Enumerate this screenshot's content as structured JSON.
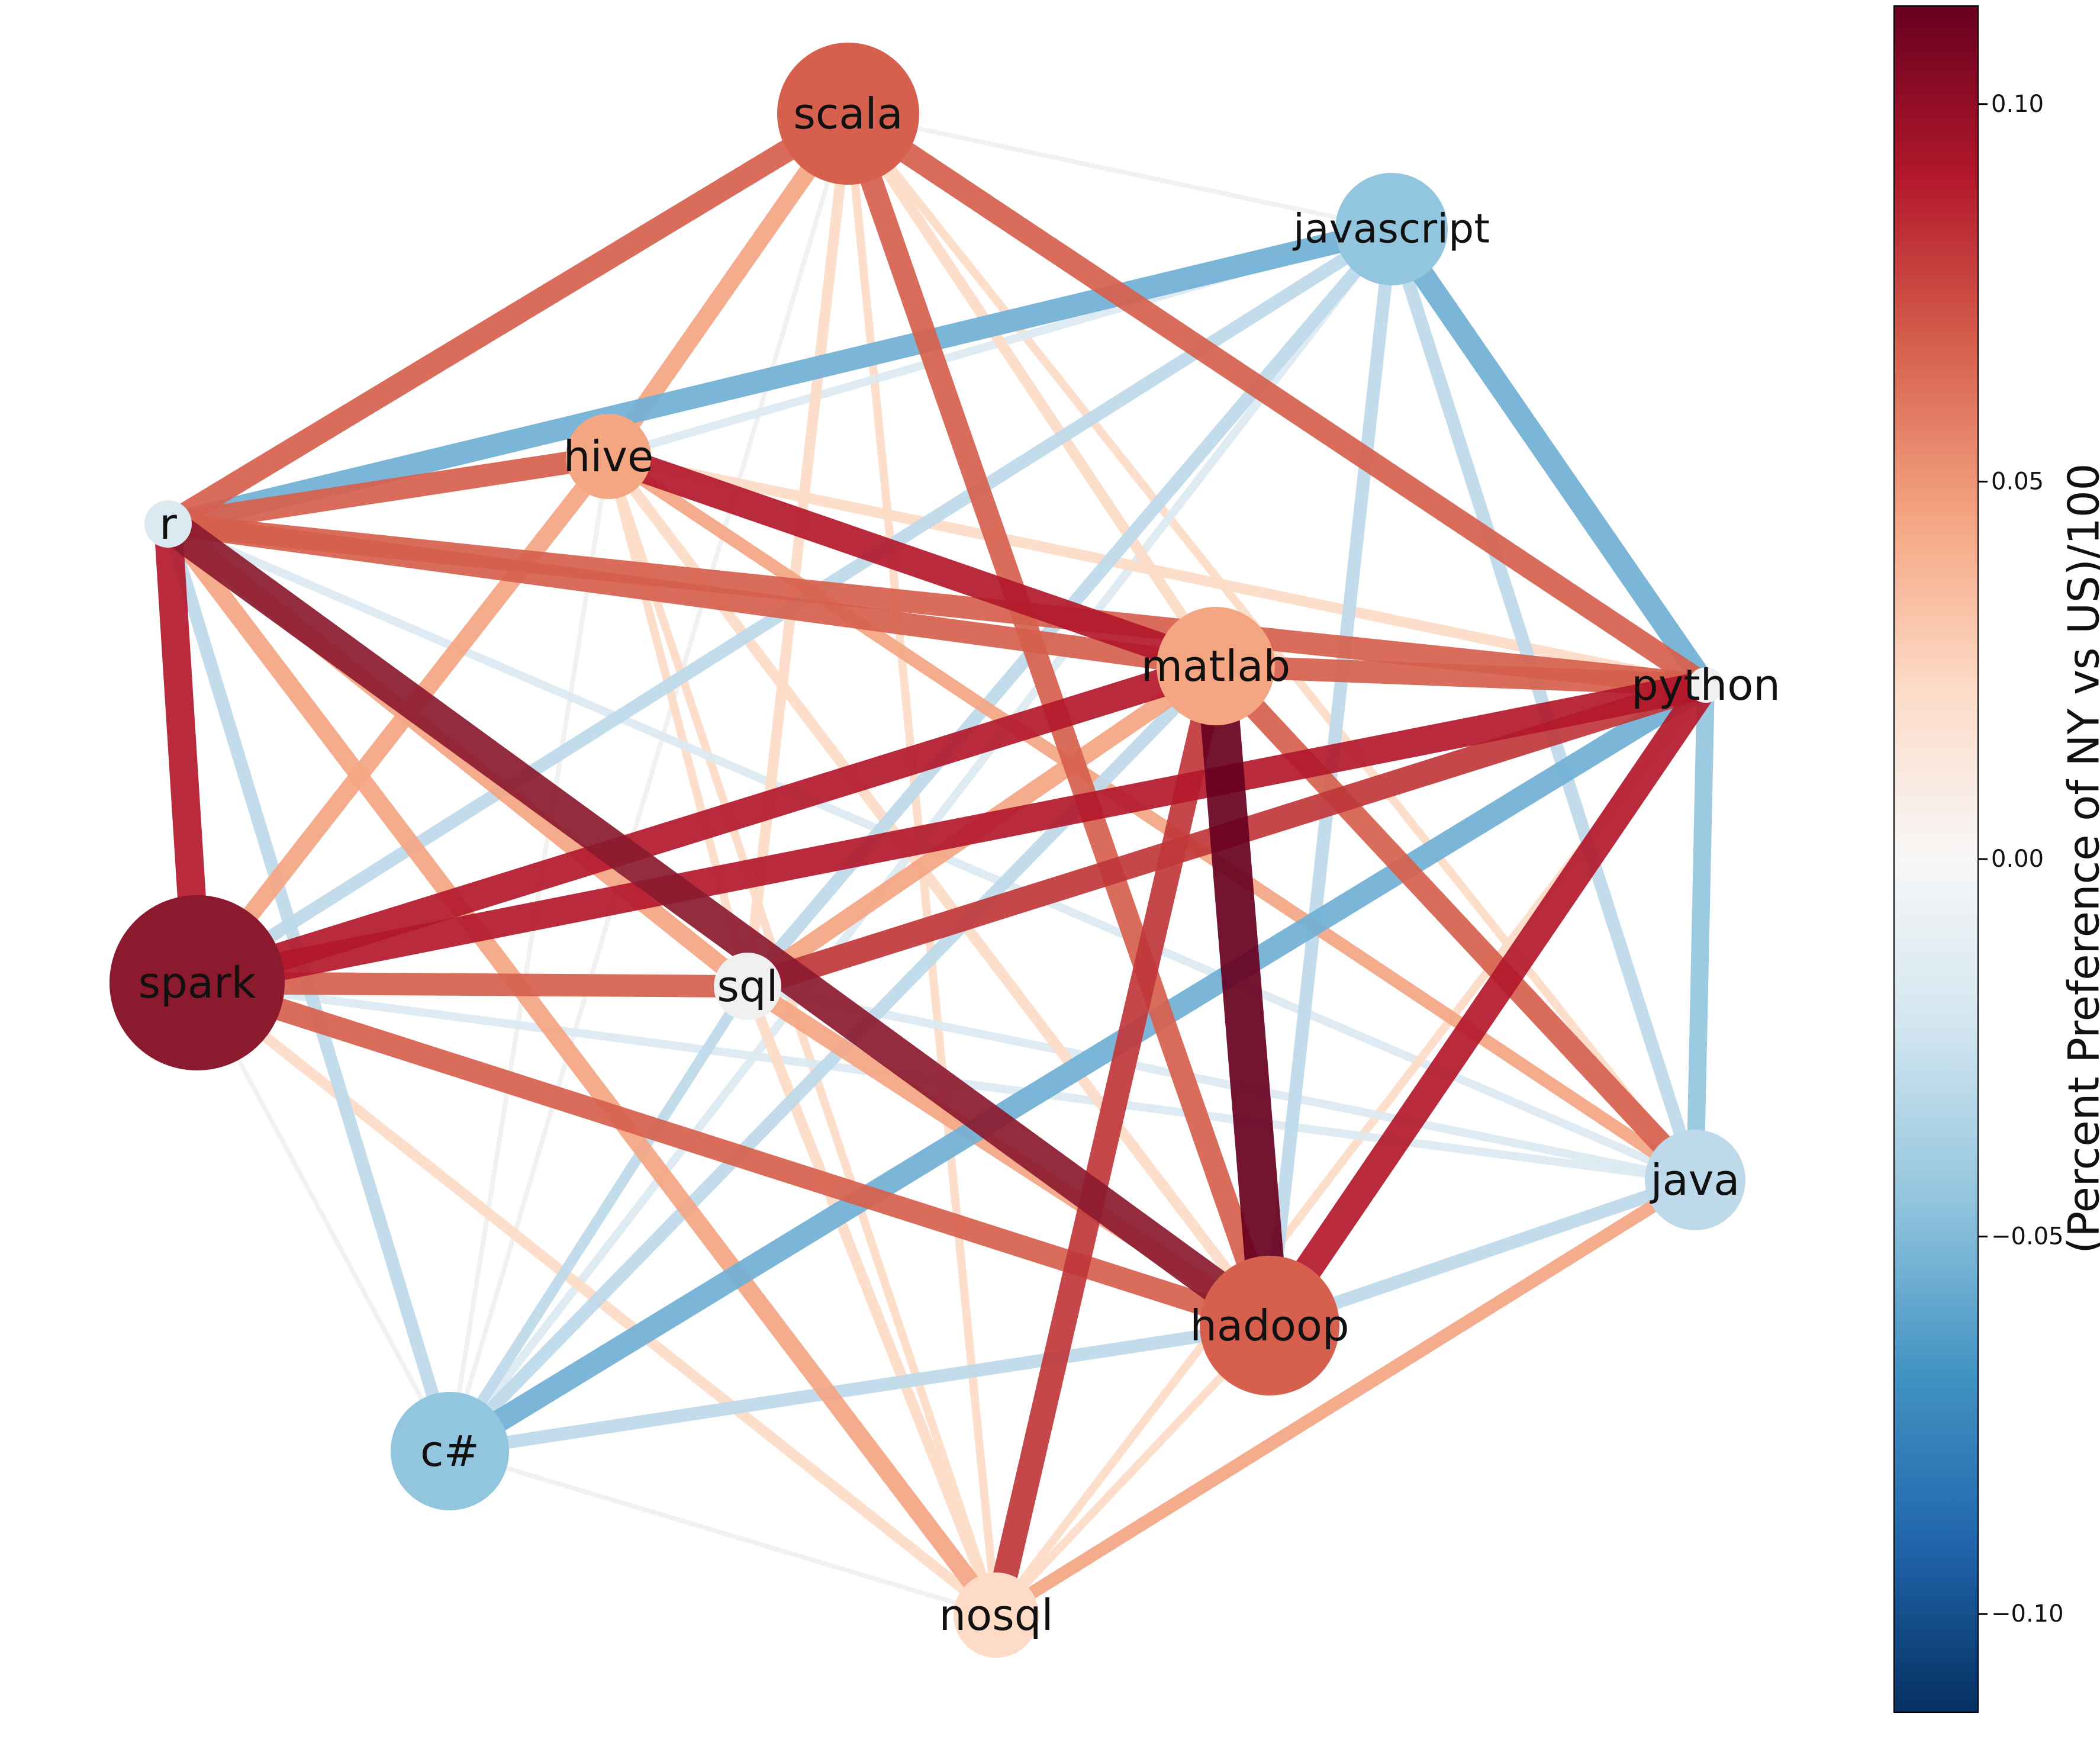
{
  "colors": {
    "c_pos_11": "#67001f",
    "c_pos_10": "#8b1a2f",
    "c_pos_08": "#b2182b",
    "c_pos_07": "#c0373a",
    "c_pos_06": "#d6604d",
    "c_pos_04": "#f4a582",
    "c_pos_02": "#fddbc7",
    "c_zero": "#f0f0f0",
    "c_neg_02": "#dbe9f1",
    "c_neg_04": "#bdd9ea",
    "c_neg_05": "#92c5de",
    "c_neg_06": "#70b0d6",
    "node_label": "#111111",
    "colorbar_stops": [
      "#053061",
      "#2166ac",
      "#4393c3",
      "#92c5de",
      "#d1e5f0",
      "#f7f7f7",
      "#fddbc7",
      "#f4a582",
      "#d6604d",
      "#b2182b",
      "#67001f"
    ]
  },
  "nodes": [
    {
      "id": "scala",
      "label": "scala",
      "value": 0.07
    },
    {
      "id": "javascript",
      "label": "javascript",
      "value": -0.05
    },
    {
      "id": "hive",
      "label": "hive",
      "value": 0.035
    },
    {
      "id": "r",
      "label": "r",
      "value": -0.015
    },
    {
      "id": "matlab",
      "label": "matlab",
      "value": 0.05
    },
    {
      "id": "python",
      "label": "python",
      "value": 0.0
    },
    {
      "id": "spark",
      "label": "spark",
      "value": 0.1
    },
    {
      "id": "sql",
      "label": "sql",
      "value": -0.01
    },
    {
      "id": "java",
      "label": "java",
      "value": -0.03
    },
    {
      "id": "hadoop",
      "label": "hadoop",
      "value": 0.07
    },
    {
      "id": "c#",
      "label": "c#",
      "value": -0.05
    },
    {
      "id": "nosql",
      "label": "nosql",
      "value": 0.03
    }
  ],
  "edges": [
    {
      "source": "scala",
      "target": "javascript",
      "value": -0.01
    },
    {
      "source": "scala",
      "target": "r",
      "value": 0.07
    },
    {
      "source": "scala",
      "target": "hive",
      "value": 0.05
    },
    {
      "source": "scala",
      "target": "python",
      "value": 0.07
    },
    {
      "source": "scala",
      "target": "sql",
      "value": 0.03
    },
    {
      "source": "scala",
      "target": "matlab",
      "value": 0.03
    },
    {
      "source": "scala",
      "target": "hadoop",
      "value": 0.07
    },
    {
      "source": "scala",
      "target": "nosql",
      "value": 0.02
    },
    {
      "source": "scala",
      "target": "java",
      "value": 0.02
    },
    {
      "source": "scala",
      "target": "c#",
      "value": -0.01
    },
    {
      "source": "javascript",
      "target": "r",
      "value": -0.06
    },
    {
      "source": "javascript",
      "target": "hive",
      "value": -0.02
    },
    {
      "source": "javascript",
      "target": "python",
      "value": -0.06
    },
    {
      "source": "javascript",
      "target": "spark",
      "value": -0.04
    },
    {
      "source": "javascript",
      "target": "sql",
      "value": -0.04
    },
    {
      "source": "javascript",
      "target": "java",
      "value": -0.04
    },
    {
      "source": "javascript",
      "target": "hadoop",
      "value": -0.04
    },
    {
      "source": "javascript",
      "target": "c#",
      "value": -0.02
    },
    {
      "source": "hive",
      "target": "r",
      "value": 0.07
    },
    {
      "source": "hive",
      "target": "matlab",
      "value": 0.09
    },
    {
      "source": "hive",
      "target": "python",
      "value": 0.03
    },
    {
      "source": "hive",
      "target": "spark",
      "value": 0.05
    },
    {
      "source": "hive",
      "target": "sql",
      "value": 0.02
    },
    {
      "source": "hive",
      "target": "java",
      "value": 0.04
    },
    {
      "source": "hive",
      "target": "hadoop",
      "value": 0.03
    },
    {
      "source": "hive",
      "target": "nosql",
      "value": 0.02
    },
    {
      "source": "hive",
      "target": "c#",
      "value": -0.01
    },
    {
      "source": "r",
      "target": "matlab",
      "value": 0.07
    },
    {
      "source": "r",
      "target": "python",
      "value": 0.07
    },
    {
      "source": "r",
      "target": "spark",
      "value": 0.09
    },
    {
      "source": "r",
      "target": "hadoop",
      "value": 0.1
    },
    {
      "source": "r",
      "target": "java",
      "value": -0.02
    },
    {
      "source": "r",
      "target": "c#",
      "value": -0.04
    },
    {
      "source": "r",
      "target": "sql",
      "value": 0.05
    },
    {
      "source": "r",
      "target": "nosql",
      "value": 0.05
    },
    {
      "source": "matlab",
      "target": "python",
      "value": 0.07
    },
    {
      "source": "matlab",
      "target": "spark",
      "value": 0.09
    },
    {
      "source": "matlab",
      "target": "sql",
      "value": 0.05
    },
    {
      "source": "matlab",
      "target": "hadoop",
      "value": 0.11
    },
    {
      "source": "matlab",
      "target": "nosql",
      "value": 0.08
    },
    {
      "source": "matlab",
      "target": "java",
      "value": 0.07
    },
    {
      "source": "matlab",
      "target": "c#",
      "value": -0.04
    },
    {
      "source": "python",
      "target": "spark",
      "value": 0.09
    },
    {
      "source": "python",
      "target": "sql",
      "value": 0.08
    },
    {
      "source": "python",
      "target": "java",
      "value": -0.05
    },
    {
      "source": "python",
      "target": "hadoop",
      "value": 0.09
    },
    {
      "source": "python",
      "target": "nosql",
      "value": 0.02
    },
    {
      "source": "python",
      "target": "c#",
      "value": -0.06
    },
    {
      "source": "spark",
      "target": "sql",
      "value": 0.07
    },
    {
      "source": "spark",
      "target": "hadoop",
      "value": 0.07
    },
    {
      "source": "spark",
      "target": "nosql",
      "value": 0.03
    },
    {
      "source": "spark",
      "target": "c#",
      "value": -0.01
    },
    {
      "source": "spark",
      "target": "java",
      "value": -0.02
    },
    {
      "source": "sql",
      "target": "hadoop",
      "value": 0.05
    },
    {
      "source": "sql",
      "target": "java",
      "value": -0.02
    },
    {
      "source": "sql",
      "target": "nosql",
      "value": 0.03
    },
    {
      "source": "sql",
      "target": "c#",
      "value": -0.03
    },
    {
      "source": "java",
      "target": "hadoop",
      "value": -0.04
    },
    {
      "source": "java",
      "target": "nosql",
      "value": 0.04
    },
    {
      "source": "hadoop",
      "target": "c#",
      "value": -0.04
    },
    {
      "source": "hadoop",
      "target": "nosql",
      "value": 0.02
    },
    {
      "source": "c#",
      "target": "nosql",
      "value": -0.01
    }
  ],
  "colorbar": {
    "label": "(Percent Preference of NY vs US)/100",
    "range": [
      -0.113,
      0.113
    ],
    "ticks": [
      {
        "value": 0.1,
        "label": "0.10"
      },
      {
        "value": 0.05,
        "label": "0.05"
      },
      {
        "value": 0.0,
        "label": "0.00"
      },
      {
        "value": -0.05,
        "label": "−0.05"
      },
      {
        "value": -0.1,
        "label": "−0.10"
      }
    ]
  }
}
